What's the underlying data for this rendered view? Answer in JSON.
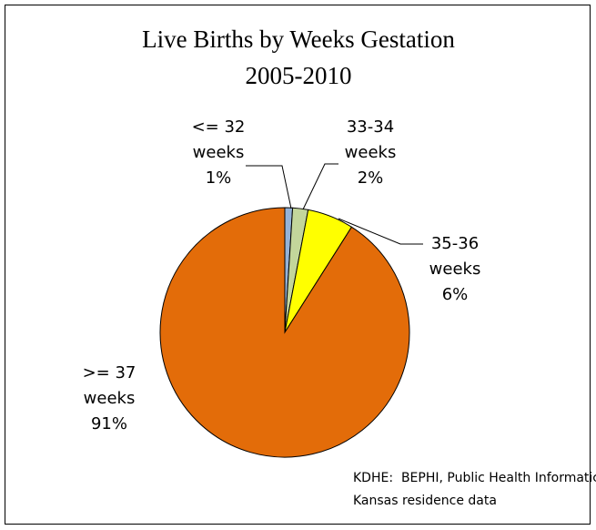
{
  "chart_data": {
    "type": "pie",
    "title": "Live Births by Weeks Gestation",
    "subtitle": "2005-2010",
    "categories": [
      "<= 32 weeks",
      "33-34 weeks",
      "35-36 weeks",
      ">= 37 weeks"
    ],
    "values": [
      1,
      2,
      6,
      91
    ],
    "value_labels": [
      "1%",
      "2%",
      "6%",
      "91%"
    ],
    "colors": [
      "#95b3d7",
      "#c3d69b",
      "#ffff00",
      "#e36c09"
    ],
    "notes": [
      "KDHE:  BEPHI, Public Health Informatics",
      "Kansas residence data"
    ]
  }
}
